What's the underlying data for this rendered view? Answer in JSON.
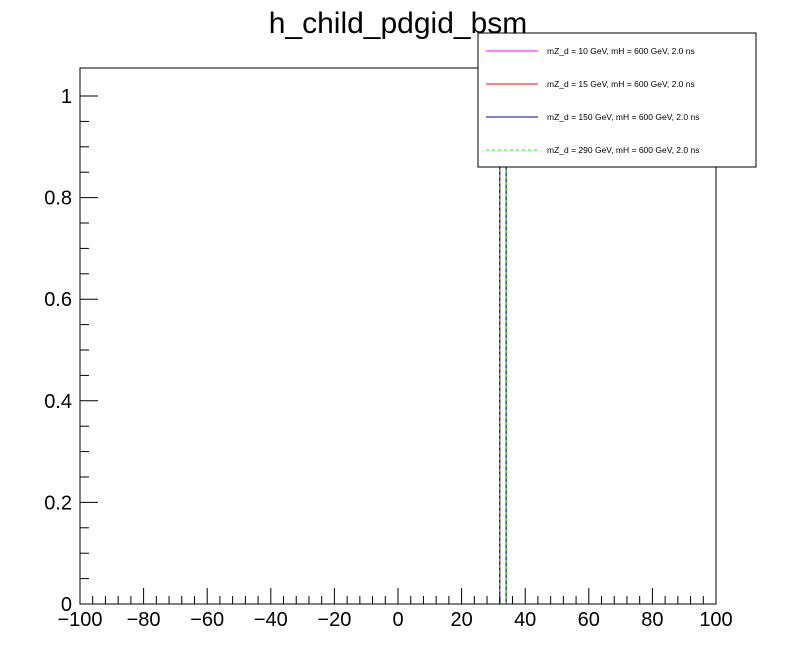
{
  "chart_data": {
    "type": "line",
    "title": "h_child_pdgid_bsm",
    "xlabel": "",
    "ylabel": "",
    "xlim": [
      -100,
      100
    ],
    "ylim": [
      0,
      1.05
    ],
    "grid": false,
    "legend_position": "top-right",
    "x_ticks": [
      -100,
      -80,
      -60,
      -40,
      -20,
      0,
      20,
      40,
      60,
      80,
      100
    ],
    "x_tick_labels": [
      "−100",
      "−80",
      "−60",
      "−40",
      "−20",
      "0",
      "20",
      "40",
      "60",
      "80",
      "100"
    ],
    "y_ticks": [
      0,
      0.2,
      0.4,
      0.6,
      0.8,
      1
    ],
    "y_tick_labels": [
      "0",
      "0.2",
      "0.4",
      "0.6",
      "0.8",
      "1"
    ],
    "bin_width": 2,
    "series": [
      {
        "name": "mZ_d = 10 GeV, mH = 600 GeV, 2.0 ns",
        "color": "#ff00ff",
        "dashed": false,
        "bins": [
          {
            "x_low": 32,
            "x_high": 34,
            "value": 1.0
          }
        ]
      },
      {
        "name": "mZ_d = 15 GeV, mH = 600 GeV, 2.0 ns",
        "color": "#ff0000",
        "dashed": false,
        "bins": [
          {
            "x_low": 32,
            "x_high": 34,
            "value": 1.0
          }
        ]
      },
      {
        "name": "mZ_d = 150 GeV, mH = 600 GeV, 2.0 ns",
        "color": "#000099",
        "dashed": false,
        "bins": [
          {
            "x_low": 32,
            "x_high": 34,
            "value": 1.0
          }
        ]
      },
      {
        "name": "mZ_d = 290 GeV, mH = 600 GeV, 2.0 ns",
        "color": "#00ff00",
        "dashed": true,
        "bins": [
          {
            "x_low": 32,
            "x_high": 34,
            "value": 1.0
          }
        ]
      }
    ]
  }
}
